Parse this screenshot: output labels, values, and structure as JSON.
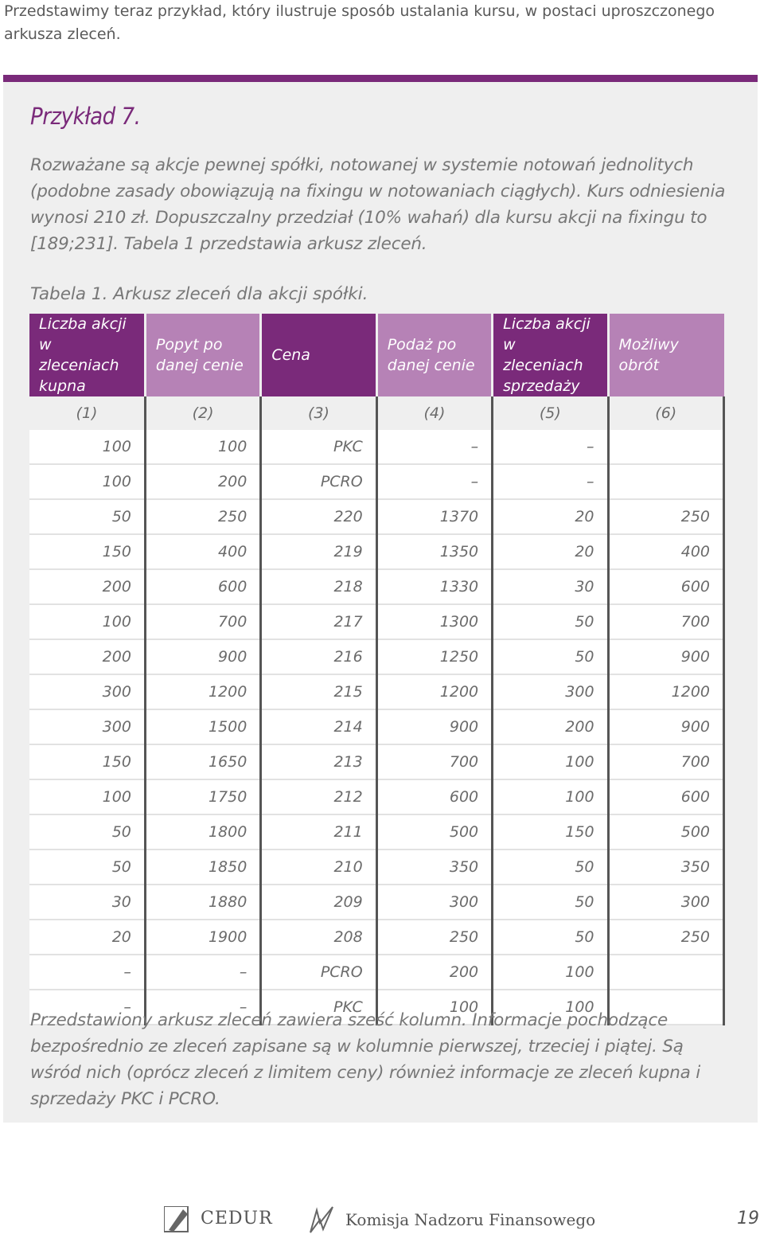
{
  "intro": "Przedstawimy teraz przykład, który ilustruje sposób ustalania kursu, w postaci uproszczonego arkusza zleceń.",
  "example": {
    "title": "Przykład 7.",
    "paragraph1": "Rozważane są akcje pewnej spółki, notowanej w systemie notowań jednolitych (podobne zasady obowiązują na fixingu w notowaniach ciągłych). Kurs odniesienia wynosi 210 zł. Dopuszczalny przedział (10% wahań) dla kursu akcji na fixingu to [189;231]. Tabela 1 przedstawia arkusz zleceń.",
    "table_caption": "Tabela 1. Arkusz zleceń dla akcji spółki.",
    "table": {
      "headers": [
        "Liczba akcji w zleceniach kupna",
        "Popyt po danej cenie",
        "Cena",
        "Podaż po danej cenie",
        "Liczba akcji w zleceniach sprzedaży",
        "Możliwy obrót"
      ],
      "column_numbers": [
        "(1)",
        "(2)",
        "(3)",
        "(4)",
        "(5)",
        "(6)"
      ],
      "rows": [
        [
          "100",
          "100",
          "PKC",
          "–",
          "–",
          ""
        ],
        [
          "100",
          "200",
          "PCRO",
          "–",
          "–",
          ""
        ],
        [
          "50",
          "250",
          "220",
          "1370",
          "20",
          "250"
        ],
        [
          "150",
          "400",
          "219",
          "1350",
          "20",
          "400"
        ],
        [
          "200",
          "600",
          "218",
          "1330",
          "30",
          "600"
        ],
        [
          "100",
          "700",
          "217",
          "1300",
          "50",
          "700"
        ],
        [
          "200",
          "900",
          "216",
          "1250",
          "50",
          "900"
        ],
        [
          "300",
          "1200",
          "215",
          "1200",
          "300",
          "1200"
        ],
        [
          "300",
          "1500",
          "214",
          "900",
          "200",
          "900"
        ],
        [
          "150",
          "1650",
          "213",
          "700",
          "100",
          "700"
        ],
        [
          "100",
          "1750",
          "212",
          "600",
          "100",
          "600"
        ],
        [
          "50",
          "1800",
          "211",
          "500",
          "150",
          "500"
        ],
        [
          "50",
          "1850",
          "210",
          "350",
          "50",
          "350"
        ],
        [
          "30",
          "1880",
          "209",
          "300",
          "50",
          "300"
        ],
        [
          "20",
          "1900",
          "208",
          "250",
          "50",
          "250"
        ],
        [
          "–",
          "–",
          "PCRO",
          "200",
          "100",
          ""
        ],
        [
          "–",
          "–",
          "PKC",
          "100",
          "100",
          ""
        ]
      ]
    },
    "paragraph2": "Przedstawiony arkusz zleceń zawiera sześć kolumn. Informacje pochodzące bezpośrednio ze zleceń zapisane są w kolumnie pierwszej, trzeciej i piątej. Są wśród nich (oprócz zleceń z limitem ceny) również informacje ze zleceń kupna i sprzedaży PKC i PCRO."
  },
  "footer": {
    "logo1_text": "CEDUR",
    "logo2_text": "Komisja Nadzoru Finansowego",
    "page_number": "19"
  },
  "colors": {
    "accent": "#7a2a7a",
    "accent_light": "#b682b6",
    "box_bg": "#efefef"
  }
}
